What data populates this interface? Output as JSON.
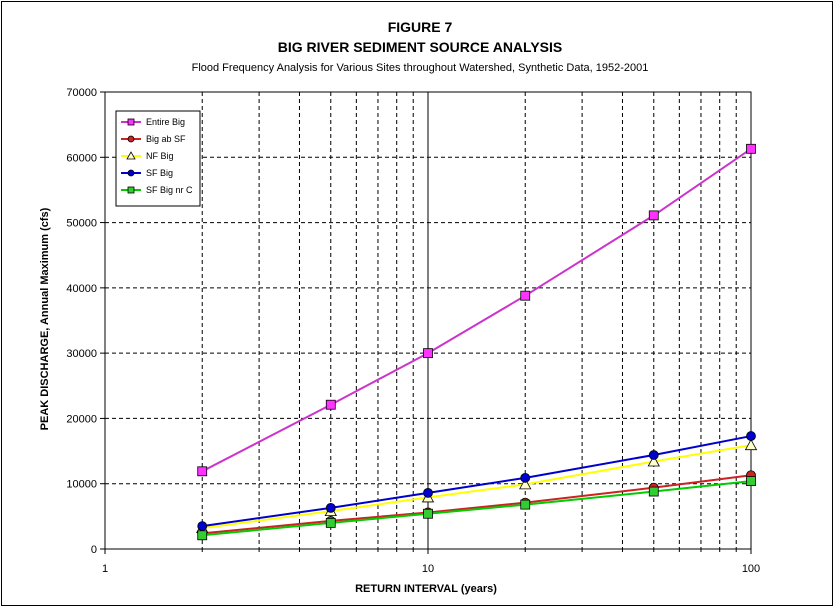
{
  "chart_data": {
    "type": "line",
    "title": "FIGURE 7",
    "subtitle": "BIG RIVER SEDIMENT SOURCE ANALYSIS",
    "subtitle2": "Flood Frequency Analysis for Various Sites throughout Watershed, Synthetic Data, 1952-2001",
    "xlabel": "RETURN INTERVAL  (years)",
    "ylabel": "PEAK DISCHARGE, Annual Maximum  (cfs)",
    "x_scale": "log",
    "xlim": [
      1,
      100
    ],
    "ylim": [
      0,
      70000
    ],
    "x_ticks": [
      1,
      10,
      100
    ],
    "x_tick_labels": [
      "1",
      "10",
      "100"
    ],
    "y_ticks": [
      0,
      10000,
      20000,
      30000,
      40000,
      50000,
      60000,
      70000
    ],
    "y_tick_labels": [
      "0",
      "10000",
      "20000",
      "30000",
      "40000",
      "50000",
      "60000",
      "70000"
    ],
    "grid": true,
    "legend_position": "top-left",
    "x": [
      2,
      5,
      10,
      20,
      50,
      100
    ],
    "series": [
      {
        "name": "Entire Big",
        "color": "#cc33cc",
        "fill": "#ff33ff",
        "marker": "square",
        "values": [
          11900,
          22100,
          30000,
          38800,
          51100,
          61300
        ]
      },
      {
        "name": "Big ab SF",
        "color": "#cc2222",
        "fill": "#cc2222",
        "marker": "circle",
        "values": [
          2400,
          4300,
          5600,
          7100,
          9400,
          11300
        ]
      },
      {
        "name": "NF Big",
        "color": "#ffff00",
        "fill": "#ffffcc",
        "marker": "triangle",
        "values": [
          3200,
          5800,
          7900,
          9900,
          13400,
          15900
        ]
      },
      {
        "name": "SF Big",
        "color": "#0000cc",
        "fill": "#0000cc",
        "marker": "circle",
        "values": [
          3500,
          6300,
          8600,
          10900,
          14400,
          17300
        ]
      },
      {
        "name": "SF Big nr C",
        "color": "#00cc00",
        "fill": "#33cc33",
        "marker": "square",
        "values": [
          2100,
          4000,
          5400,
          6800,
          8800,
          10400
        ]
      }
    ]
  }
}
